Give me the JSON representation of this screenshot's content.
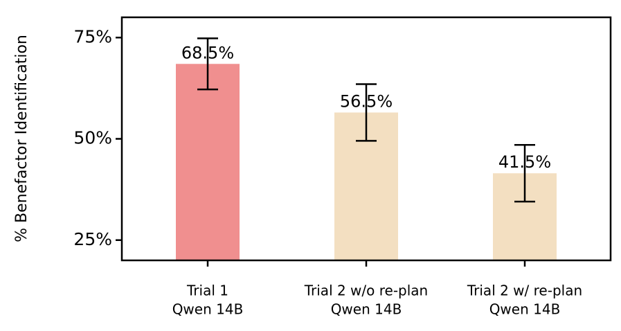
{
  "chart_data": {
    "type": "bar",
    "y_label": "% Benefactor Identification",
    "categories": [
      [
        "Trial 1",
        "Qwen 14B"
      ],
      [
        "Trial 2 w/o re-plan",
        "Qwen 14B"
      ],
      [
        "Trial 2 w/ re-plan",
        "Qwen 14B"
      ]
    ],
    "values": [
      68.5,
      56.5,
      41.5
    ],
    "value_labels": [
      "68.5%",
      "56.5%",
      "41.5%"
    ],
    "errors": [
      6.3,
      7.0,
      7.0
    ],
    "colors": [
      "#f08f8f",
      "#f3dfc1",
      "#f3dfc1"
    ],
    "ylim": [
      20,
      80
    ],
    "yticks": [
      {
        "value": 25,
        "label": "25%"
      },
      {
        "value": 50,
        "label": "50%"
      },
      {
        "value": 75,
        "label": "75%"
      }
    ],
    "grid": false
  }
}
